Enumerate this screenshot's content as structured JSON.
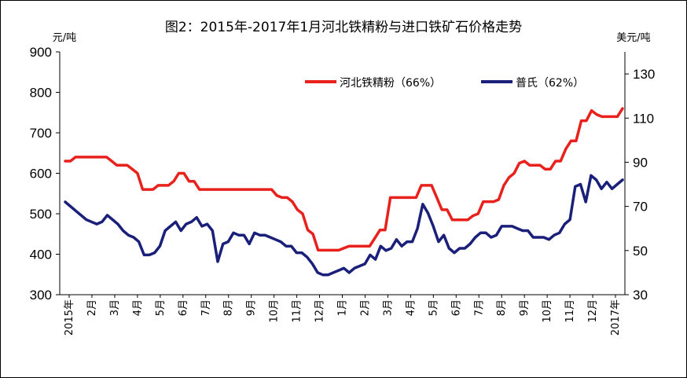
{
  "chart_data": {
    "type": "line",
    "title": "图2：2015年-2017年1月河北铁精粉与进口铁矿石价格走势",
    "left_unit": "元/吨",
    "right_unit": "美元/吨",
    "left_ylim": [
      300,
      900
    ],
    "left_ticks": [
      "300",
      "400",
      "500",
      "600",
      "700",
      "800",
      "900"
    ],
    "right_ylim": [
      30,
      140
    ],
    "right_ticks": [
      "30",
      "50",
      "70",
      "90",
      "110",
      "130"
    ],
    "x_ticks": [
      "2015年",
      "2月",
      "3月",
      "4月",
      "5月",
      "6月",
      "7月",
      "8月",
      "9月",
      "10月",
      "11月",
      "12月",
      "1月",
      "2月",
      "3月",
      "4月",
      "5月",
      "6月",
      "7月",
      "8月",
      "9月",
      "10月",
      "11月",
      "12月",
      "2017年"
    ],
    "legend_position": "top-center",
    "series": [
      {
        "name": "河北铁精粉（66%）",
        "axis": "left",
        "color": "#e8211c",
        "values": [
          630,
          630,
          640,
          640,
          640,
          640,
          640,
          640,
          640,
          630,
          620,
          620,
          620,
          610,
          600,
          560,
          560,
          560,
          570,
          570,
          570,
          580,
          600,
          600,
          580,
          580,
          560,
          560,
          560,
          560,
          560,
          560,
          560,
          560,
          560,
          560,
          560,
          560,
          560,
          560,
          560,
          545,
          540,
          540,
          530,
          510,
          500,
          460,
          450,
          410,
          410,
          410,
          410,
          410,
          415,
          420,
          420,
          420,
          420,
          420,
          440,
          460,
          460,
          540,
          540,
          540,
          540,
          540,
          540,
          570,
          570,
          570,
          540,
          510,
          510,
          485,
          485,
          485,
          485,
          495,
          500,
          530,
          530,
          530,
          535,
          570,
          590,
          600,
          625,
          630,
          620,
          620,
          620,
          610,
          610,
          630,
          630,
          660,
          680,
          680,
          730,
          730,
          755,
          745,
          740,
          740,
          740,
          740,
          760
        ]
      },
      {
        "name": "普氏（62%）",
        "axis": "right",
        "color": "#1a1f7a",
        "values": [
          72,
          70,
          68,
          66,
          64,
          63,
          62,
          63,
          66,
          64,
          62,
          59,
          57,
          56,
          54,
          48,
          48,
          49,
          52,
          59,
          61,
          63,
          59,
          62,
          63,
          65,
          61,
          62,
          59,
          45,
          53,
          54,
          58,
          57,
          57,
          53,
          58,
          57,
          57,
          56,
          55,
          54,
          52,
          52,
          49,
          49,
          47,
          44,
          40,
          39,
          39,
          40,
          41,
          42,
          40,
          42,
          43,
          44,
          48,
          46,
          52,
          50,
          51,
          55,
          52,
          54,
          54,
          60,
          71,
          67,
          61,
          54,
          57,
          51,
          49,
          51,
          51,
          53,
          56,
          58,
          58,
          56,
          57,
          61,
          61,
          61,
          60,
          59,
          59,
          56,
          56,
          56,
          55,
          57,
          58,
          62,
          64,
          79,
          80,
          72,
          84,
          82,
          78,
          81,
          78,
          80,
          82
        ]
      }
    ]
  }
}
